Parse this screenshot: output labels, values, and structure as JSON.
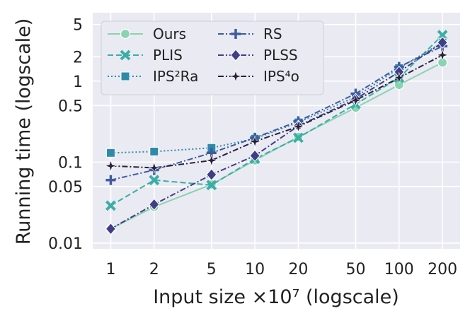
{
  "chart_data": {
    "type": "line",
    "xlabel": "Input size ×10⁷ (logscale)",
    "ylabel": "Running time (logscale)",
    "xscale": "log",
    "yscale": "log",
    "xlim": [
      0.75,
      265
    ],
    "ylim": [
      0.0085,
      7
    ],
    "grid": true,
    "legend_position": "top-left",
    "x": [
      1,
      2,
      5,
      10,
      20,
      50,
      100,
      200
    ],
    "x_tick_labels": [
      "1",
      "2",
      "5",
      "10",
      "20",
      "50",
      "100",
      "200"
    ],
    "y_ticks": [
      0.01,
      0.05,
      0.1,
      0.5,
      1,
      2,
      5
    ],
    "y_tick_labels": [
      "0.01",
      "0.05",
      "0.1",
      "0.5",
      "1",
      "2",
      "5"
    ],
    "series": [
      {
        "name": "Ours",
        "color": "#8ad3b0",
        "dash": "solid",
        "marker": "circle",
        "values": [
          0.015,
          0.028,
          0.053,
          0.105,
          0.205,
          0.47,
          0.9,
          1.7
        ]
      },
      {
        "name": "PLIS",
        "color": "#3aaea6",
        "dash": "dashed",
        "marker": "x",
        "values": [
          0.029,
          0.06,
          0.052,
          0.11,
          0.2,
          0.52,
          1.1,
          3.7
        ]
      },
      {
        "name": "IPS²Ra",
        "color": "#2f8aa8",
        "dash": "dotted",
        "marker": "square",
        "values": [
          0.13,
          0.135,
          0.15,
          0.195,
          0.31,
          0.64,
          1.45,
          3.0
        ]
      },
      {
        "name": "RS",
        "color": "#3d5c9e",
        "dash": "dashdot",
        "marker": "plus",
        "values": [
          0.06,
          0.08,
          0.13,
          0.2,
          0.32,
          0.7,
          1.5,
          2.7
        ]
      },
      {
        "name": "PLSS",
        "color": "#403e87",
        "dash": "dashdot",
        "marker": "diamond",
        "values": [
          0.015,
          0.03,
          0.07,
          0.12,
          0.28,
          0.6,
          1.3,
          3.0
        ]
      },
      {
        "name": "IPS⁴o",
        "color": "#2a1f3d",
        "dash": "dashdot",
        "marker": "star",
        "values": [
          0.09,
          0.085,
          0.105,
          0.18,
          0.275,
          0.58,
          1.1,
          2.1
        ]
      }
    ]
  }
}
